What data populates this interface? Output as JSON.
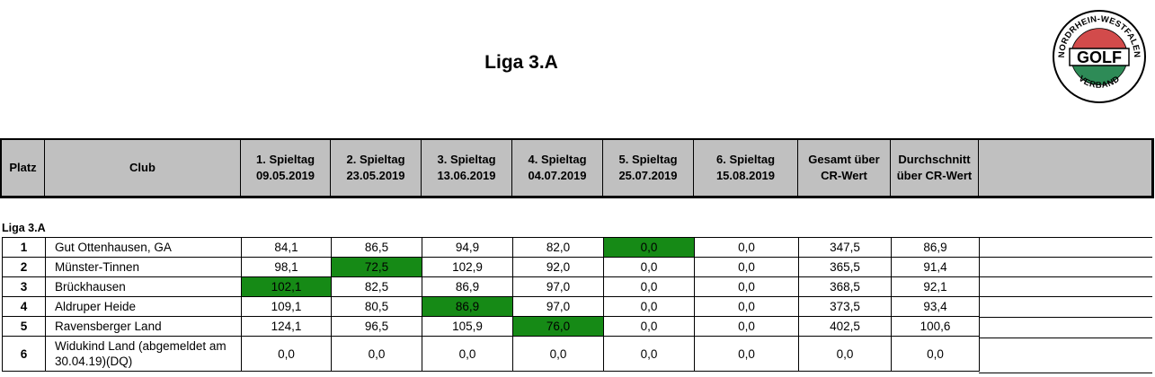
{
  "title": "Liga 3.A",
  "logo": {
    "arc_top": "NORDRHEIN-WESTFALEN",
    "center": "GOLF",
    "arc_bottom": "VERBAND",
    "colors": {
      "red": "#d24b4b",
      "green": "#2e8b57"
    }
  },
  "header": {
    "platz": "Platz",
    "club": "Club",
    "spieltage": [
      {
        "label": "1. Spieltag",
        "date": "09.05.2019"
      },
      {
        "label": "2. Spieltag",
        "date": "23.05.2019"
      },
      {
        "label": "3. Spieltag",
        "date": "13.06.2019"
      },
      {
        "label": "4. Spieltag",
        "date": "04.07.2019"
      },
      {
        "label": "5. Spieltag",
        "date": "25.07.2019"
      },
      {
        "label": "6. Spieltag",
        "date": "15.08.2019"
      }
    ],
    "gesamt_l1": "Gesamt über",
    "gesamt_l2": "CR-Wert",
    "durch_l1": "Durchschnitt",
    "durch_l2": "über CR-Wert"
  },
  "section": "Liga 3.A",
  "highlight_color": "#168a16",
  "rows": [
    {
      "platz": "1",
      "club": "Gut Ottenhausen, GA",
      "values": [
        "84,1",
        "86,5",
        "94,9",
        "82,0",
        "0,0",
        "0,0"
      ],
      "gesamt": "347,5",
      "durchschnitt": "86,9",
      "highlight": 4
    },
    {
      "platz": "2",
      "club": "Münster-Tinnen",
      "values": [
        "98,1",
        "72,5",
        "102,9",
        "92,0",
        "0,0",
        "0,0"
      ],
      "gesamt": "365,5",
      "durchschnitt": "91,4",
      "highlight": 1
    },
    {
      "platz": "3",
      "club": "Brückhausen",
      "values": [
        "102,1",
        "82,5",
        "86,9",
        "97,0",
        "0,0",
        "0,0"
      ],
      "gesamt": "368,5",
      "durchschnitt": "92,1",
      "highlight": 0
    },
    {
      "platz": "4",
      "club": "Aldruper Heide",
      "values": [
        "109,1",
        "80,5",
        "86,9",
        "97,0",
        "0,0",
        "0,0"
      ],
      "gesamt": "373,5",
      "durchschnitt": "93,4",
      "highlight": 2
    },
    {
      "platz": "5",
      "club": "Ravensberger Land",
      "values": [
        "124,1",
        "96,5",
        "105,9",
        "76,0",
        "0,0",
        "0,0"
      ],
      "gesamt": "402,5",
      "durchschnitt": "100,6",
      "highlight": 3
    },
    {
      "platz": "6",
      "club": "Widukind Land  (abgemeldet am 30.04.19)(DQ)",
      "values": [
        "0,0",
        "0,0",
        "0,0",
        "0,0",
        "0,0",
        "0,0"
      ],
      "gesamt": "0,0",
      "durchschnitt": "0,0",
      "highlight": -1
    }
  ]
}
